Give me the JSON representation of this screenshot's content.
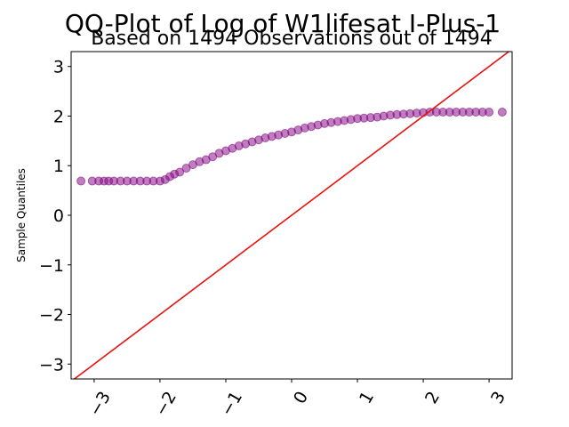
{
  "chart_data": {
    "type": "scatter",
    "title": "QQ-Plot of Log of W1lifesat I-Plus-1",
    "subtitle": "Based on 1494 Observations out of 1494",
    "xlabel": "",
    "ylabel": "Sample Quantiles",
    "xlim": [
      -3.35,
      3.35
    ],
    "ylim": [
      -3.3,
      3.3
    ],
    "xticks": [
      -3,
      -2,
      -1,
      0,
      1,
      2,
      3
    ],
    "yticks": [
      -3,
      -2,
      -1,
      0,
      1,
      2,
      3
    ],
    "xtick_labels": [
      "−3",
      "−2",
      "−1",
      "0",
      "1",
      "2",
      "3"
    ],
    "ytick_labels": [
      "−3",
      "−2",
      "−1",
      "0",
      "1",
      "2",
      "3"
    ],
    "grid": false,
    "reference_line": {
      "type": "45-degree",
      "color": "#e8120c"
    },
    "marker_color": "#800080",
    "series": [
      {
        "points": [
          [
            -3.2,
            0.69
          ],
          [
            -3.03,
            0.69
          ],
          [
            -2.93,
            0.69
          ],
          [
            -2.85,
            0.69
          ],
          [
            -2.78,
            0.69
          ],
          [
            -2.7,
            0.69
          ],
          [
            -2.6,
            0.69
          ],
          [
            -2.5,
            0.69
          ],
          [
            -2.4,
            0.69
          ],
          [
            -2.3,
            0.69
          ],
          [
            -2.2,
            0.69
          ],
          [
            -2.1,
            0.69
          ],
          [
            -2.0,
            0.69
          ],
          [
            -1.92,
            0.72
          ],
          [
            -1.85,
            0.78
          ],
          [
            -1.78,
            0.83
          ],
          [
            -1.7,
            0.87
          ],
          [
            -1.6,
            0.95
          ],
          [
            -1.5,
            1.02
          ],
          [
            -1.4,
            1.08
          ],
          [
            -1.3,
            1.12
          ],
          [
            -1.2,
            1.18
          ],
          [
            -1.1,
            1.25
          ],
          [
            -1.0,
            1.3
          ],
          [
            -0.9,
            1.35
          ],
          [
            -0.8,
            1.4
          ],
          [
            -0.7,
            1.44
          ],
          [
            -0.6,
            1.48
          ],
          [
            -0.5,
            1.52
          ],
          [
            -0.4,
            1.56
          ],
          [
            -0.3,
            1.59
          ],
          [
            -0.2,
            1.62
          ],
          [
            -0.1,
            1.65
          ],
          [
            0.0,
            1.68
          ],
          [
            0.1,
            1.72
          ],
          [
            0.2,
            1.76
          ],
          [
            0.3,
            1.79
          ],
          [
            0.4,
            1.82
          ],
          [
            0.5,
            1.85
          ],
          [
            0.6,
            1.87
          ],
          [
            0.7,
            1.89
          ],
          [
            0.8,
            1.91
          ],
          [
            0.9,
            1.93
          ],
          [
            1.0,
            1.95
          ],
          [
            1.1,
            1.96
          ],
          [
            1.2,
            1.97
          ],
          [
            1.3,
            1.98
          ],
          [
            1.4,
            2.0
          ],
          [
            1.5,
            2.02
          ],
          [
            1.6,
            2.03
          ],
          [
            1.7,
            2.04
          ],
          [
            1.8,
            2.05
          ],
          [
            1.9,
            2.06
          ],
          [
            2.0,
            2.07
          ],
          [
            2.1,
            2.08
          ],
          [
            2.2,
            2.08
          ],
          [
            2.3,
            2.08
          ],
          [
            2.4,
            2.08
          ],
          [
            2.5,
            2.08
          ],
          [
            2.6,
            2.08
          ],
          [
            2.7,
            2.08
          ],
          [
            2.8,
            2.08
          ],
          [
            2.9,
            2.08
          ],
          [
            3.0,
            2.08
          ],
          [
            3.2,
            2.08
          ]
        ]
      }
    ]
  }
}
